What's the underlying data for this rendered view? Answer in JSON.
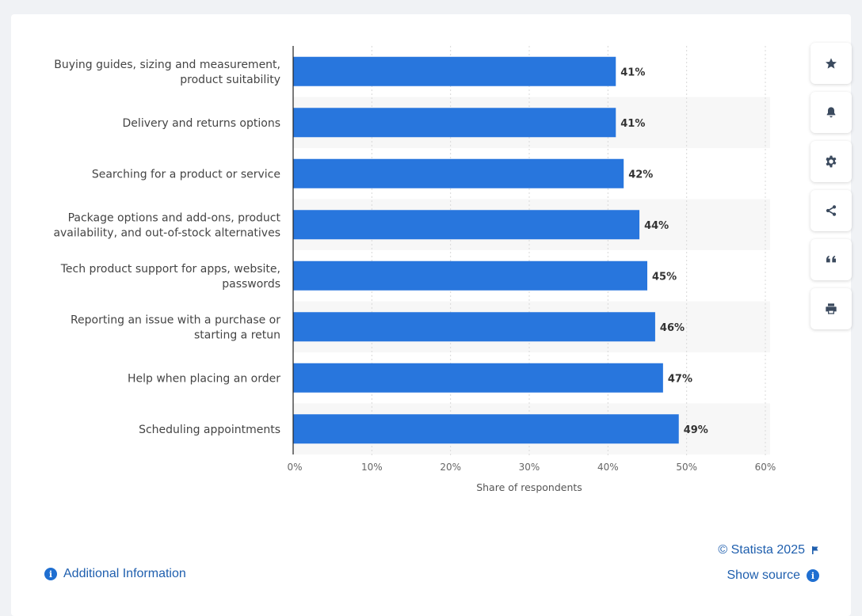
{
  "chart_data": {
    "type": "bar",
    "orientation": "horizontal",
    "categories": [
      "Buying guides, sizing and measurement,\nproduct suitability",
      "Delivery and returns options",
      "Searching for a product or service",
      "Package options and add-ons, product\navailability, and out-of-stock alternatives",
      "Tech product support for apps, website,\npasswords",
      "Reporting an issue with a purchase or\nstarting a retun",
      "Help when placing an order",
      "Scheduling appointments"
    ],
    "values": [
      41,
      41,
      42,
      44,
      45,
      46,
      47,
      49
    ],
    "value_labels": [
      "41%",
      "41%",
      "42%",
      "44%",
      "45%",
      "46%",
      "47%",
      "49%"
    ],
    "xlim": [
      0,
      60
    ],
    "x_ticks": [
      0,
      10,
      20,
      30,
      40,
      50,
      60
    ],
    "x_tick_labels": [
      "0%",
      "10%",
      "20%",
      "30%",
      "40%",
      "50%",
      "60%"
    ],
    "xlabel": "Share of respondents",
    "grid": true,
    "bar_color": "#2876dd"
  },
  "footer": {
    "credit": "© Statista 2025",
    "show_source": "Show source",
    "additional_info": "Additional Information"
  },
  "toolbar": {
    "icons": [
      "star-icon",
      "bell-icon",
      "gear-icon",
      "share-icon",
      "quote-icon",
      "print-icon"
    ]
  },
  "colors": {
    "link": "#1f5fae",
    "icon": "#3b4a5e"
  }
}
